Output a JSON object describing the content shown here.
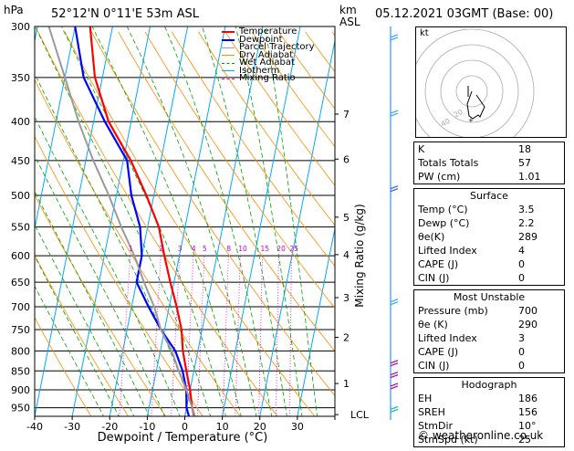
{
  "header": {
    "left_unit": "hPa",
    "location": "52°12'N  0°11'E  53m  ASL",
    "right_unit_top": "km",
    "right_unit_bottom": "ASL",
    "datetime": "05.12.2021  03GMT  (Base: 00)"
  },
  "chart_data": {
    "type": "line",
    "title": "52°12'N  0°11'E  53m  ASL",
    "xlabel": "Dewpoint / Temperature (°C)",
    "ylabel": "hPa",
    "y2label": "Mixing Ratio (g/kg)",
    "xlim": [
      -40,
      40
    ],
    "x_ticks": [
      -40,
      -30,
      -20,
      -10,
      0,
      10,
      20,
      30
    ],
    "pressure_levels": [
      300,
      350,
      400,
      450,
      500,
      550,
      600,
      650,
      700,
      750,
      800,
      850,
      900,
      950
    ],
    "km_ticks": [
      {
        "km": "7",
        "p": 391
      },
      {
        "km": "6",
        "p": 448
      },
      {
        "km": "5",
        "p": 534
      },
      {
        "km": "4",
        "p": 598
      },
      {
        "km": "3",
        "p": 681
      },
      {
        "km": "2",
        "p": 768
      },
      {
        "km": "1",
        "p": 883
      },
      {
        "km": "LCL",
        "p": 970
      }
    ],
    "mixing_ratio_labels": [
      "1",
      "2",
      "3",
      "4",
      "5",
      "8",
      "10",
      "15",
      "20",
      "25"
    ],
    "legend": [
      {
        "name": "Temperature",
        "color": "#ff0000"
      },
      {
        "name": "Dewpoint",
        "color": "#0000ff"
      },
      {
        "name": "Parcel Trajectory",
        "color": "#9a9a9a"
      },
      {
        "name": "Dry Adiabat",
        "color": "#ff8c00"
      },
      {
        "name": "Wet Adiabat",
        "color": "#00a000"
      },
      {
        "name": "Isotherm",
        "color": "#00aaff"
      },
      {
        "name": "Mixing Ratio",
        "color": "#ff00ff"
      }
    ],
    "series": [
      {
        "name": "Temperature",
        "color": "#ff0000",
        "points": [
          [
            1000,
            3.5
          ],
          [
            950,
            1.5
          ],
          [
            900,
            0
          ],
          [
            850,
            -2
          ],
          [
            800,
            -4
          ],
          [
            750,
            -5.5
          ],
          [
            700,
            -8
          ],
          [
            650,
            -11
          ],
          [
            600,
            -14
          ],
          [
            550,
            -17
          ],
          [
            500,
            -22
          ],
          [
            450,
            -28
          ],
          [
            400,
            -36
          ],
          [
            350,
            -42
          ],
          [
            300,
            -46
          ]
        ]
      },
      {
        "name": "Dewpoint",
        "color": "#0000ff",
        "points": [
          [
            1000,
            2.2
          ],
          [
            950,
            0
          ],
          [
            900,
            -1
          ],
          [
            850,
            -3
          ],
          [
            800,
            -6
          ],
          [
            750,
            -11
          ],
          [
            700,
            -15.5
          ],
          [
            650,
            -20
          ],
          [
            600,
            -20
          ],
          [
            550,
            -22
          ],
          [
            500,
            -26
          ],
          [
            450,
            -29
          ],
          [
            400,
            -37
          ],
          [
            350,
            -45
          ],
          [
            300,
            -50
          ]
        ]
      },
      {
        "name": "Parcel Trajectory",
        "color": "#9a9a9a",
        "points": [
          [
            1000,
            3.5
          ],
          [
            970,
            2.5
          ],
          [
            900,
            -1
          ],
          [
            850,
            -4
          ],
          [
            800,
            -7
          ],
          [
            750,
            -11
          ],
          [
            700,
            -14
          ],
          [
            650,
            -18
          ],
          [
            600,
            -22
          ],
          [
            550,
            -27
          ],
          [
            500,
            -32
          ],
          [
            450,
            -38
          ],
          [
            400,
            -44
          ],
          [
            350,
            -50
          ],
          [
            300,
            -57
          ]
        ]
      }
    ]
  },
  "hodograph": {
    "unit_label": "kt",
    "ring_labels": [
      "10",
      "20",
      "30",
      "40"
    ]
  },
  "indices": {
    "rows": [
      {
        "label": "K",
        "value": "18"
      },
      {
        "label": "Totals Totals",
        "value": "57"
      },
      {
        "label": "PW (cm)",
        "value": "1.01"
      }
    ]
  },
  "surface": {
    "title": "Surface",
    "rows": [
      {
        "label": "Temp (°C)",
        "value": "3.5"
      },
      {
        "label": "Dewp (°C)",
        "value": "2.2"
      },
      {
        "label": "θe(K)",
        "value": "289"
      },
      {
        "label": "Lifted Index",
        "value": "4"
      },
      {
        "label": "CAPE (J)",
        "value": "0"
      },
      {
        "label": "CIN (J)",
        "value": "0"
      }
    ]
  },
  "most_unstable": {
    "title": "Most Unstable",
    "rows": [
      {
        "label": "Pressure (mb)",
        "value": "700"
      },
      {
        "label": "θe (K)",
        "value": "290"
      },
      {
        "label": "Lifted Index",
        "value": "3"
      },
      {
        "label": "CAPE (J)",
        "value": "0"
      },
      {
        "label": "CIN (J)",
        "value": "0"
      }
    ]
  },
  "hodograph_table": {
    "title": "Hodograph",
    "rows": [
      {
        "label": "EH",
        "value": "186"
      },
      {
        "label": "SREH",
        "value": "156"
      },
      {
        "label": "StmDir",
        "value": "10°"
      },
      {
        "label": "StmSpd (kt)",
        "value": "25"
      }
    ]
  },
  "footer": {
    "copyright": "© weatheronline.co.uk"
  }
}
